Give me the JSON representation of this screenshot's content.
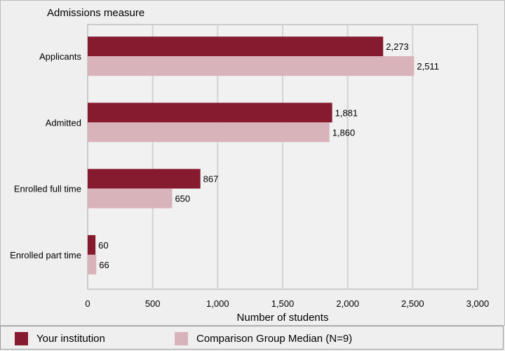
{
  "chart_data": {
    "type": "bar",
    "orientation": "horizontal",
    "title": "Admissions measure",
    "xlabel": "Number of students",
    "ylabel": "",
    "categories": [
      "Applicants",
      "Admitted",
      "Enrolled full time",
      "Enrolled part time"
    ],
    "series": [
      {
        "name": "Your institution",
        "values": [
          2273,
          1881,
          867,
          60
        ],
        "labels": [
          "2,273",
          "1,881",
          "867",
          "60"
        ],
        "color": "#861a2f"
      },
      {
        "name": "Comparison Group Median (N=9)",
        "values": [
          2511,
          1860,
          650,
          66
        ],
        "labels": [
          "2,511",
          "1,860",
          "650",
          "66"
        ],
        "color": "#d9b3ba"
      }
    ],
    "xlim": [
      0,
      3000
    ],
    "xticks": [
      0,
      500,
      1000,
      1500,
      2000,
      2500,
      3000
    ],
    "xtick_labels": [
      "0",
      "500",
      "1,000",
      "1,500",
      "2,000",
      "2,500",
      "3,000"
    ],
    "grid": true,
    "legend_position": "bottom"
  }
}
